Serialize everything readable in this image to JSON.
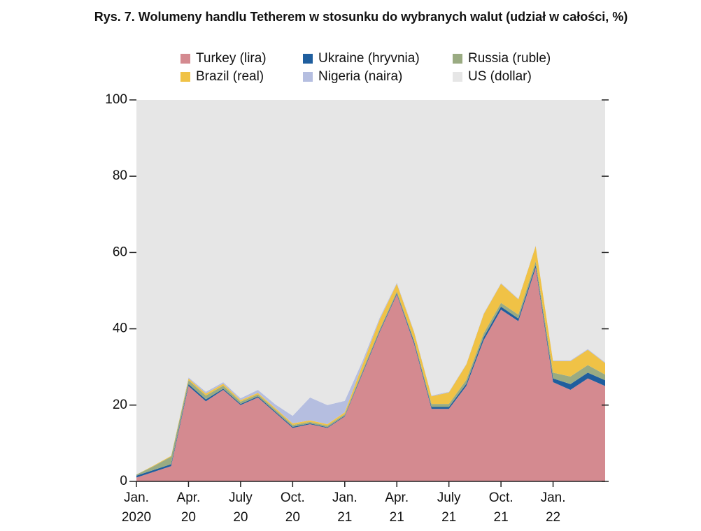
{
  "chart_data": {
    "type": "stacked-area",
    "title": "Rys. 7. Wolumeny handlu Tetherem w stosunku do wybranych walut (udział w całości, %)",
    "x": [
      "2020-01",
      "2020-02",
      "2020-03",
      "2020-04",
      "2020-05",
      "2020-06",
      "2020-07",
      "2020-08",
      "2020-09",
      "2020-10",
      "2020-11",
      "2020-12",
      "2021-01",
      "2021-02",
      "2021-03",
      "2021-04",
      "2021-05",
      "2021-06",
      "2021-07",
      "2021-08",
      "2021-09",
      "2021-10",
      "2021-11",
      "2021-12",
      "2022-01",
      "2022-02",
      "2022-03",
      "2022-04"
    ],
    "series": [
      {
        "name": "Turkey (lira)",
        "color": "#d48a90",
        "values": [
          1,
          2.5,
          4,
          25,
          21,
          24,
          20,
          22,
          18,
          14,
          15,
          14,
          17,
          28,
          39,
          49,
          36,
          19,
          19,
          25,
          37,
          45,
          42,
          56,
          26,
          24,
          27,
          25
        ]
      },
      {
        "name": "Ukraine (hryvnia)",
        "color": "#1f5e9e",
        "values": [
          0.5,
          0.5,
          0.5,
          0.5,
          0.5,
          0.3,
          0.3,
          0.3,
          0.3,
          0.3,
          0.2,
          0.2,
          0.2,
          0.3,
          0.3,
          0.3,
          0.5,
          0.5,
          0.5,
          0.6,
          0.8,
          0.8,
          0.7,
          0.7,
          1,
          1.5,
          1.5,
          1.5
        ]
      },
      {
        "name": "Russia (ruble)",
        "color": "#9aab82",
        "values": [
          0.3,
          1,
          2,
          1,
          1,
          0.8,
          0.6,
          0.5,
          0.5,
          0.5,
          0.4,
          0.4,
          0.4,
          0.5,
          0.5,
          0.5,
          0.5,
          0.8,
          0.8,
          1,
          1,
          1,
          1,
          1,
          1.5,
          2,
          2,
          1.5
        ]
      },
      {
        "name": "Brazil (real)",
        "color": "#f0c246",
        "values": [
          0,
          0.2,
          0.2,
          0.5,
          0.5,
          0.5,
          0.4,
          0.4,
          0.4,
          0.4,
          0.4,
          0.4,
          0.5,
          1.5,
          2.5,
          2,
          2,
          2,
          3,
          4,
          5,
          5,
          4,
          4,
          3,
          4,
          4,
          3
        ]
      },
      {
        "name": "Nigeria (naira)",
        "color": "#b5bee0",
        "values": [
          0,
          0,
          0,
          0.3,
          0.5,
          0.4,
          0.5,
          0.8,
          1,
          2,
          6,
          5,
          3,
          1,
          0.5,
          0.3,
          0.3,
          0.2,
          0.2,
          0.2,
          0.2,
          0.2,
          0.2,
          0.2,
          0.2,
          0.2,
          0.2,
          0.2
        ]
      },
      {
        "name": "US (dollar)",
        "color": "#e6e6e6",
        "values": [
          98.2,
          95.8,
          93.3,
          72.7,
          76.5,
          74,
          78.2,
          76,
          79.8,
          82.8,
          78,
          80,
          78.9,
          68.7,
          57.2,
          47.9,
          60.7,
          77.5,
          76.5,
          69.2,
          56,
          48,
          52.1,
          38.1,
          68.3,
          68.3,
          65.3,
          68.8
        ]
      }
    ],
    "xlim": [
      "2020-01",
      "2022-04"
    ],
    "xticks": [
      {
        "value": "2020-01",
        "label": [
          "Jan.",
          "2020"
        ]
      },
      {
        "value": "2020-04",
        "label": [
          "Apr.",
          "20"
        ]
      },
      {
        "value": "2020-07",
        "label": [
          "July",
          "20"
        ]
      },
      {
        "value": "2020-10",
        "label": [
          "Oct.",
          "20"
        ]
      },
      {
        "value": "2021-01",
        "label": [
          "Jan.",
          "21"
        ]
      },
      {
        "value": "2021-04",
        "label": [
          "Apr.",
          "21"
        ]
      },
      {
        "value": "2021-07",
        "label": [
          "July",
          "21"
        ]
      },
      {
        "value": "2021-10",
        "label": [
          "Oct.",
          "21"
        ]
      },
      {
        "value": "2022-01",
        "label": [
          "Jan.",
          "22"
        ]
      }
    ],
    "ylim": [
      0,
      100
    ],
    "yticks": [
      0,
      20,
      40,
      60,
      80,
      100
    ]
  }
}
